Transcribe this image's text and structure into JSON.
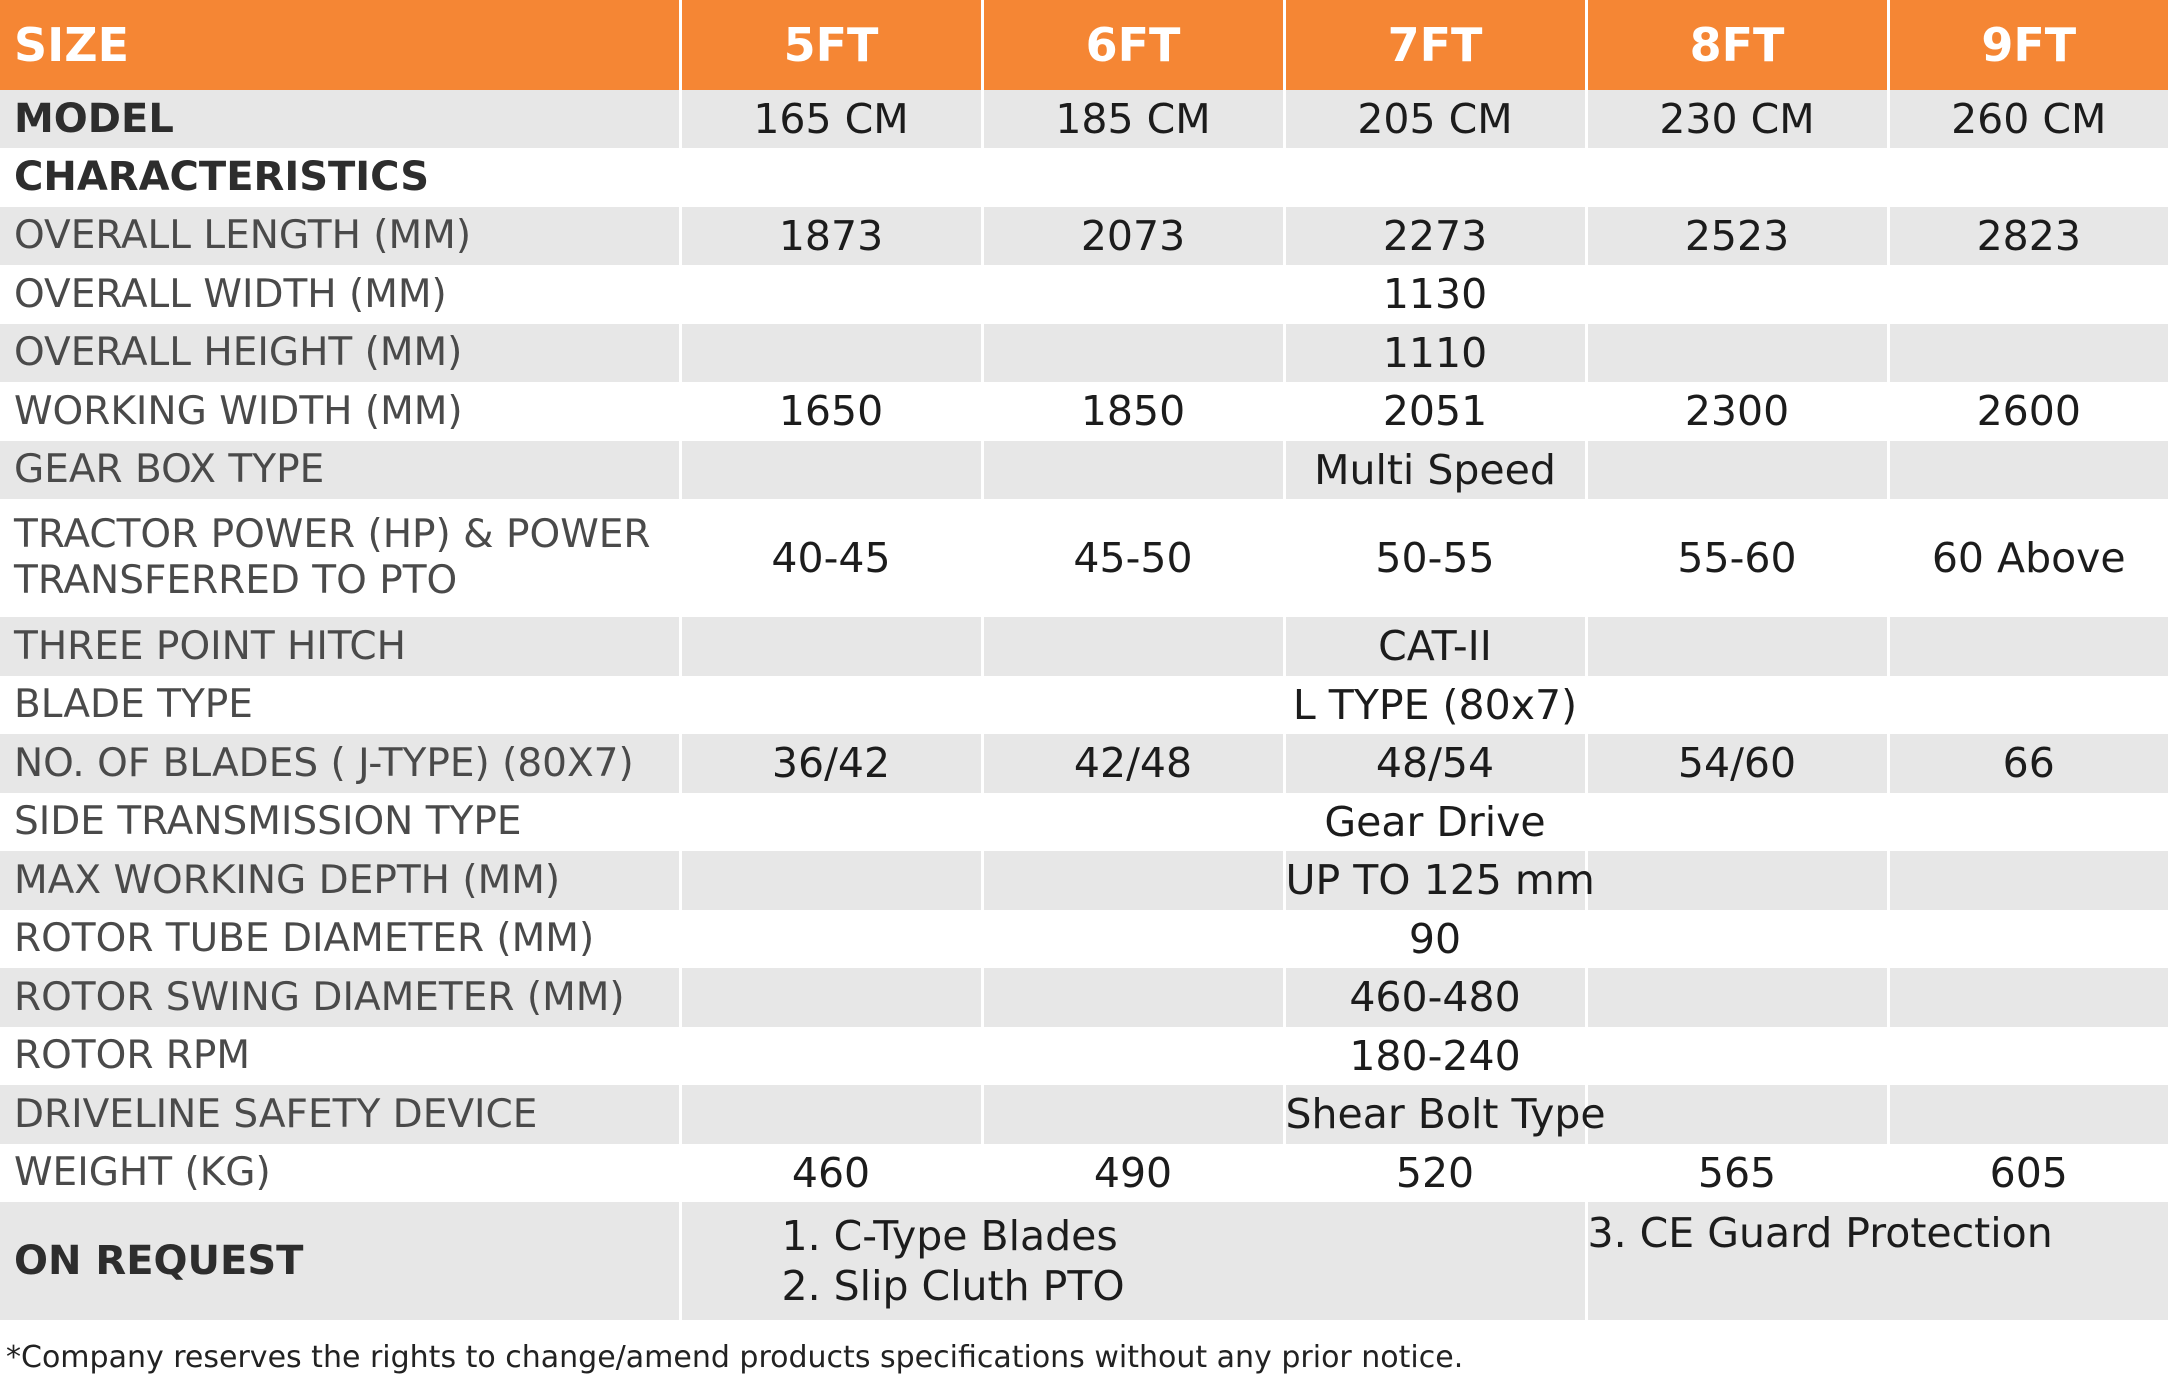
{
  "header": {
    "size_label": "SIZE",
    "sizes": [
      "5FT",
      "6FT",
      "7FT",
      "8FT",
      "9FT"
    ]
  },
  "model_row": {
    "label": "MODEL",
    "values": [
      "165 CM",
      "185 CM",
      "205 CM",
      "230 CM",
      "260 CM"
    ]
  },
  "characteristics_label": "CHARACTERISTICS",
  "rows": {
    "overall_length": {
      "label": "OVERALL LENGTH (MM)",
      "values": [
        "1873",
        "2073",
        "2273",
        "2523",
        "2823"
      ]
    },
    "overall_width": {
      "label": "OVERALL WIDTH (MM)",
      "value": "1130"
    },
    "overall_height": {
      "label": "OVERALL HEIGHT (MM)",
      "value": "1110"
    },
    "working_width": {
      "label": "WORKING WIDTH (MM)",
      "values": [
        "1650",
        "1850",
        "2051",
        "2300",
        "2600"
      ]
    },
    "gear_box": {
      "label": "GEAR BOX TYPE",
      "value": "Multi Speed"
    },
    "tractor_power": {
      "label_line1": "TRACTOR POWER (HP) & POWER",
      "label_line2": "TRANSFERRED TO PTO",
      "values": [
        "40-45",
        "45-50",
        "50-55",
        "55-60",
        "60 Above"
      ]
    },
    "three_point_hitch": {
      "label": "THREE POINT HITCH",
      "value": "CAT-II"
    },
    "blade_type": {
      "label": "BLADE TYPE",
      "value": "L TYPE (80x7)"
    },
    "no_of_blades": {
      "label": "NO. OF BLADES ( J-TYPE) (80X7)",
      "values": [
        "36/42",
        "42/48",
        "48/54",
        "54/60",
        "66"
      ]
    },
    "side_transmission": {
      "label": "SIDE TRANSMISSION TYPE",
      "value": "Gear Drive"
    },
    "max_working_depth": {
      "label": "MAX WORKING DEPTH (MM)",
      "value": "UP TO 125 mm"
    },
    "rotor_tube": {
      "label": "ROTOR TUBE DIAMETER (MM)",
      "value": "90"
    },
    "rotor_swing": {
      "label": "ROTOR SWING DIAMETER (MM)",
      "value": "460-480"
    },
    "rotor_rpm": {
      "label": "ROTOR RPM",
      "value": "180-240"
    },
    "driveline_safety": {
      "label": "DRIVELINE SAFETY DEVICE",
      "value": "Shear Bolt Type"
    },
    "weight": {
      "label": "WEIGHT (KG)",
      "values": [
        "460",
        "490",
        "520",
        "565",
        "605"
      ]
    }
  },
  "on_request": {
    "label": "ON REQUEST",
    "items": [
      "1. C-Type Blades",
      "2. Slip Cluth PTO",
      "3. CE Guard Protection"
    ]
  },
  "footnote": "*Company reserves the rights to change/amend products specifications without any prior notice.",
  "colors": {
    "header_orange": "#f58634",
    "row_grey": "#e7e7e7"
  }
}
